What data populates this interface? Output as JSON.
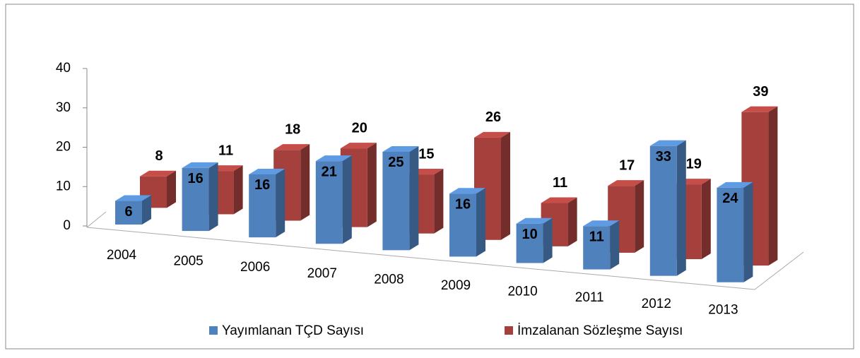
{
  "chart_data": {
    "type": "bar3d",
    "categories": [
      "2004",
      "2005",
      "2006",
      "2007",
      "2008",
      "2009",
      "2010",
      "2011",
      "2012",
      "2013"
    ],
    "series": [
      {
        "name": "Yayımlanan TÇD Sayısı",
        "color": "#4f81bd",
        "values": [
          6,
          16,
          16,
          21,
          25,
          16,
          10,
          11,
          33,
          24
        ]
      },
      {
        "name": "İmzalanan Sözleşme Sayısı",
        "color": "#a5403c",
        "values": [
          8,
          11,
          18,
          20,
          15,
          26,
          11,
          17,
          19,
          39
        ]
      }
    ],
    "ylim": [
      0,
      40
    ],
    "yticks": [
      0,
      10,
      20,
      30,
      40
    ]
  }
}
